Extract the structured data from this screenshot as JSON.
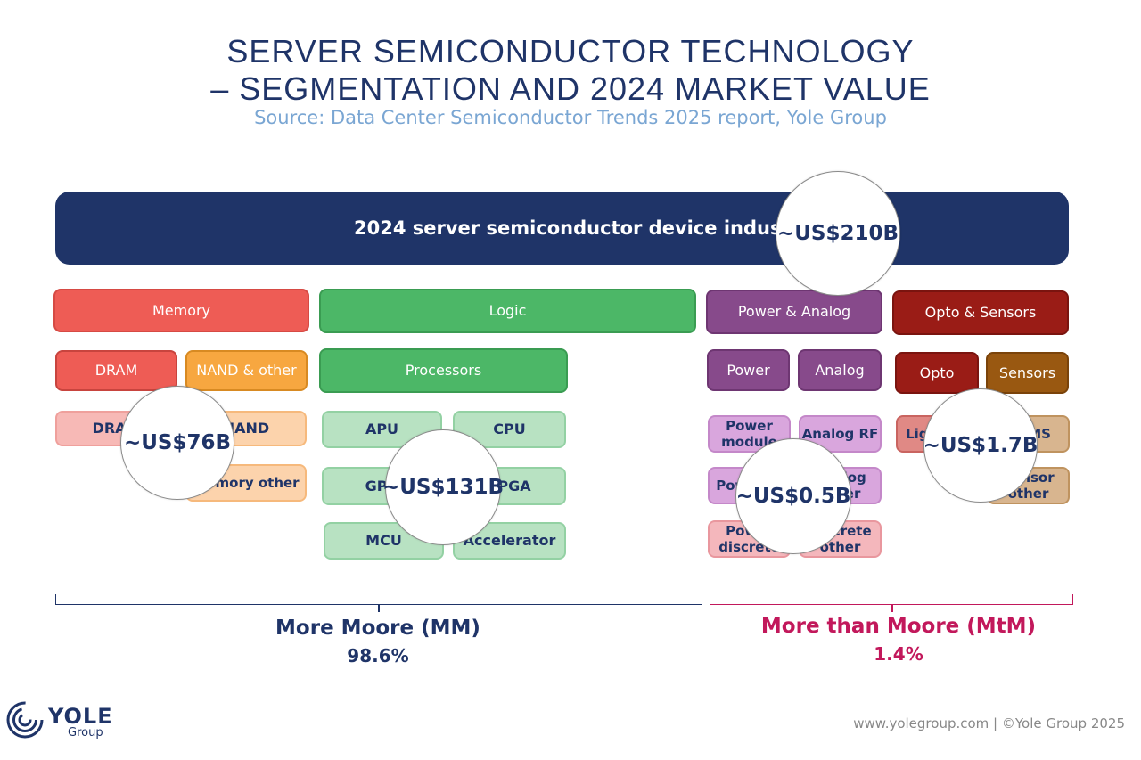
{
  "header": {
    "title_line1": "SERVER SEMICONDUCTOR TECHNOLOGY",
    "title_line2": "– SEGMENTATION AND 2024 MARKET VALUE",
    "source": "Source: Data Center Semiconductor Trends 2025 report, Yole Group"
  },
  "banner": {
    "label": "2024 server semiconductor device industry",
    "value": "~US$210B"
  },
  "categories": {
    "memory": {
      "label": "Memory",
      "value": "~US$76B",
      "sub": [
        "DRAM",
        "NAND & other"
      ],
      "items": [
        "DRAM",
        "NAND",
        "Memory other"
      ]
    },
    "logic": {
      "label": "Logic",
      "value": "~US$131B",
      "sub": [
        "Processors"
      ],
      "items": [
        "APU",
        "CPU",
        "GPU",
        "FPGA",
        "MCU",
        "Accelerator"
      ]
    },
    "power_analog": {
      "label": "Power & Analog",
      "value": "~US$0.5B",
      "sub": [
        "Power",
        "Analog"
      ],
      "items": [
        "Power module",
        "Analog RF",
        "Power IC",
        "Analog other",
        "Power discrete",
        "Discrete other"
      ]
    },
    "opto_sensors": {
      "label": "Opto & Sensors",
      "value": "~US$1.7B",
      "sub": [
        "Opto",
        "Sensors"
      ],
      "items": [
        "Lighting",
        "MEMS",
        "Sensor other"
      ]
    }
  },
  "segments": {
    "mm": {
      "label": "More Moore (MM)",
      "pct": "98.6%"
    },
    "mtm": {
      "label": "More than Moore (MtM)",
      "pct": "1.4%"
    }
  },
  "footer": {
    "logo_name": "YOLE",
    "logo_sub": "Group",
    "credit": "www.yolegroup.com | ©Yole Group 2025"
  },
  "colors": {
    "navy": "#1f3468",
    "memory": "#ee5c55",
    "nand": "#f7a740",
    "logic": "#4cb767",
    "power_analog": "#874a8b",
    "opto_sensors": "#9a1c16",
    "sensors": "#995811",
    "mtm": "#c2185b"
  }
}
